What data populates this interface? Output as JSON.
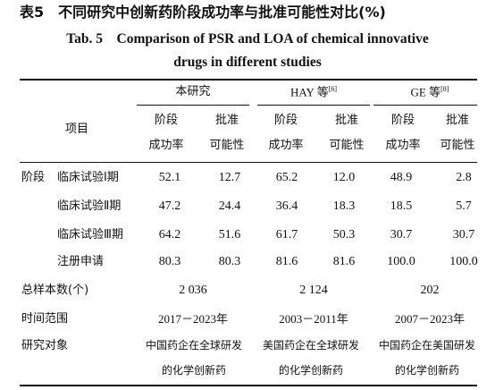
{
  "title_cn": "表5　不同研究中创新药阶段成功率与批准可能性对比(%)",
  "title_en_line1": "Tab. 5　Comparison of PSR and LOA of chemical innovative",
  "title_en_line2": "drugs in different studies",
  "groups": {
    "this_study": "本研究",
    "hay": "HAY 等",
    "hay_ref": "[6]",
    "ge": "GE 等",
    "ge_ref": "[8]"
  },
  "col_headers": {
    "item": "项目",
    "psr_line1": "阶段",
    "psr_line2": "成功率",
    "loa_line1": "批准",
    "loa_line2": "可能性"
  },
  "stage_label": "阶段",
  "rows": [
    {
      "label": "临床试验Ⅰ期",
      "values": [
        "52.1",
        "12.7",
        "65.2",
        "12.0",
        "48.9",
        "2.8"
      ]
    },
    {
      "label": "临床试验Ⅱ期",
      "values": [
        "47.2",
        "24.4",
        "36.4",
        "18.3",
        "18.5",
        "5.7"
      ]
    },
    {
      "label": "临床试验Ⅲ期",
      "values": [
        "64.2",
        "51.6",
        "61.7",
        "50.3",
        "30.7",
        "30.7"
      ]
    },
    {
      "label": "注册申请",
      "values": [
        "80.3",
        "80.3",
        "81.6",
        "81.6",
        "100.0",
        "100.0"
      ]
    }
  ],
  "sample": {
    "label": "总样本数(个)",
    "values": [
      "2 036",
      "2 124",
      "202"
    ]
  },
  "time": {
    "label": "时间范围",
    "values": [
      "2017－2023年",
      "2003－2011年",
      "2007－2023年"
    ]
  },
  "object": {
    "label": "研究对象",
    "values": [
      [
        "中国药企在全球研发",
        "的化学创新药"
      ],
      [
        "美国药企在全球研发",
        "的化学创新药"
      ],
      [
        "中国药企在美国研发",
        "的化学创新药"
      ]
    ]
  }
}
